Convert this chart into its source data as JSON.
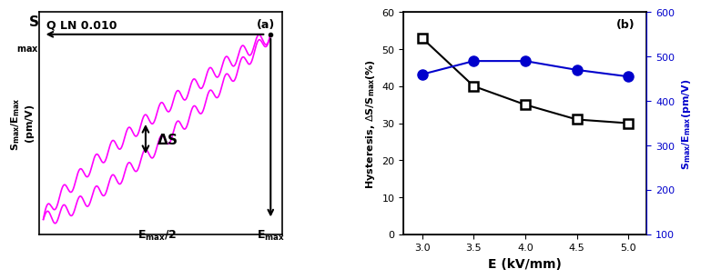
{
  "panel_a": {
    "label": "Q LN 0.010",
    "panel_tag": "(a)",
    "color": "#FF00FF",
    "n_oscillations": 28,
    "arrow_color": "black"
  },
  "panel_b": {
    "panel_tag": "(b)",
    "E": [
      3.0,
      3.5,
      4.0,
      4.5,
      5.0
    ],
    "hysteresis": [
      53.0,
      40.0,
      35.0,
      31.0,
      30.0
    ],
    "smax_emax": [
      460,
      490,
      490,
      470,
      455
    ],
    "xlabel": "E (kV/mm)",
    "color_black": "#000000",
    "color_blue": "#0000CC",
    "ylim_left": [
      0,
      60
    ],
    "ylim_right": [
      100,
      600
    ],
    "yticks_left": [
      0,
      10,
      20,
      30,
      40,
      50,
      60
    ],
    "yticks_right": [
      100,
      200,
      300,
      400,
      500,
      600
    ],
    "xticks": [
      3.0,
      3.5,
      4.0,
      4.5,
      5.0
    ]
  }
}
